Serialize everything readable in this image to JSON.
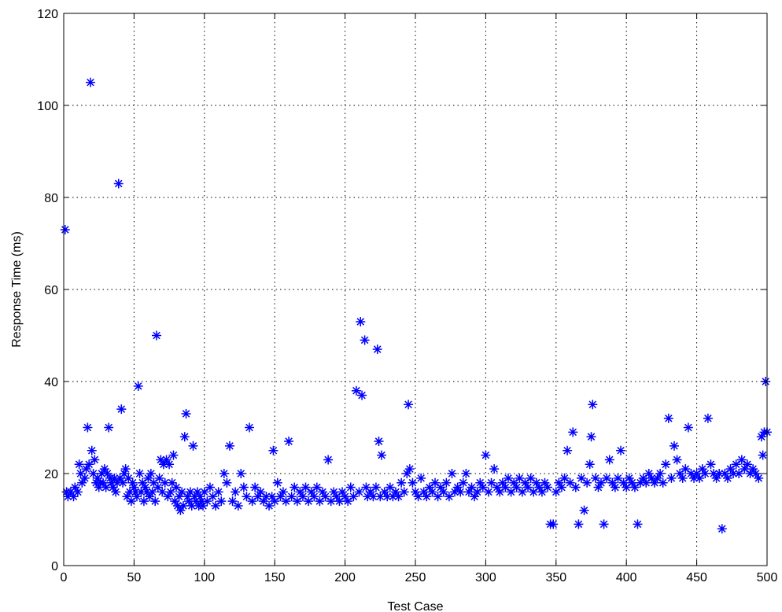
{
  "chart_data": {
    "type": "scatter",
    "title": "",
    "xlabel": "Test Case",
    "ylabel": "Response Time (ms)",
    "xlim": [
      0,
      500
    ],
    "ylim": [
      0,
      120
    ],
    "xticks": [
      0,
      50,
      100,
      150,
      200,
      250,
      300,
      350,
      400,
      450,
      500
    ],
    "yticks": [
      0,
      20,
      40,
      60,
      80,
      100,
      120
    ],
    "grid": true,
    "legend": "none",
    "marker": "asterisk",
    "color": "#0000ff",
    "series": [
      {
        "points": [
          [
            1,
            73
          ],
          [
            2,
            16
          ],
          [
            3,
            15
          ],
          [
            5,
            16
          ],
          [
            7,
            15
          ],
          [
            8,
            17
          ],
          [
            10,
            16
          ],
          [
            11,
            22
          ],
          [
            12,
            20
          ],
          [
            13,
            18
          ],
          [
            15,
            19
          ],
          [
            16,
            21
          ],
          [
            17,
            30
          ],
          [
            18,
            22
          ],
          [
            19,
            105
          ],
          [
            20,
            25
          ],
          [
            21,
            20
          ],
          [
            22,
            23
          ],
          [
            23,
            18
          ],
          [
            24,
            19
          ],
          [
            25,
            17
          ],
          [
            26,
            18
          ],
          [
            27,
            20
          ],
          [
            28,
            18
          ],
          [
            29,
            21
          ],
          [
            30,
            17
          ],
          [
            31,
            20
          ],
          [
            32,
            30
          ],
          [
            33,
            19
          ],
          [
            34,
            18
          ],
          [
            35,
            17
          ],
          [
            36,
            19
          ],
          [
            37,
            16
          ],
          [
            38,
            18
          ],
          [
            39,
            83
          ],
          [
            40,
            19
          ],
          [
            41,
            34
          ],
          [
            42,
            18
          ],
          [
            43,
            20
          ],
          [
            44,
            21
          ],
          [
            45,
            15
          ],
          [
            46,
            19
          ],
          [
            47,
            16
          ],
          [
            48,
            14
          ],
          [
            49,
            18
          ],
          [
            50,
            17
          ],
          [
            51,
            16
          ],
          [
            52,
            15
          ],
          [
            53,
            39
          ],
          [
            54,
            20
          ],
          [
            55,
            16
          ],
          [
            56,
            18
          ],
          [
            57,
            14
          ],
          [
            58,
            17
          ],
          [
            59,
            16
          ],
          [
            60,
            19
          ],
          [
            61,
            15
          ],
          [
            62,
            20
          ],
          [
            63,
            16
          ],
          [
            64,
            18
          ],
          [
            65,
            14
          ],
          [
            66,
            50
          ],
          [
            67,
            17
          ],
          [
            68,
            19
          ],
          [
            69,
            23
          ],
          [
            70,
            16
          ],
          [
            71,
            22
          ],
          [
            72,
            18
          ],
          [
            73,
            23
          ],
          [
            74,
            15
          ],
          [
            75,
            22
          ],
          [
            76,
            16
          ],
          [
            77,
            18
          ],
          [
            78,
            24
          ],
          [
            79,
            14
          ],
          [
            80,
            17
          ],
          [
            81,
            13
          ],
          [
            82,
            15
          ],
          [
            83,
            12
          ],
          [
            84,
            16
          ],
          [
            85,
            13
          ],
          [
            86,
            28
          ],
          [
            87,
            33
          ],
          [
            88,
            15
          ],
          [
            89,
            14
          ],
          [
            90,
            16
          ],
          [
            91,
            13
          ],
          [
            92,
            26
          ],
          [
            93,
            15
          ],
          [
            94,
            14
          ],
          [
            95,
            16
          ],
          [
            96,
            13
          ],
          [
            97,
            15
          ],
          [
            98,
            14
          ],
          [
            99,
            13
          ],
          [
            100,
            16
          ],
          [
            102,
            14
          ],
          [
            104,
            17
          ],
          [
            106,
            15
          ],
          [
            108,
            13
          ],
          [
            110,
            16
          ],
          [
            112,
            14
          ],
          [
            114,
            20
          ],
          [
            116,
            18
          ],
          [
            118,
            26
          ],
          [
            120,
            14
          ],
          [
            122,
            16
          ],
          [
            124,
            13
          ],
          [
            126,
            20
          ],
          [
            128,
            17
          ],
          [
            130,
            15
          ],
          [
            132,
            30
          ],
          [
            134,
            14
          ],
          [
            136,
            17
          ],
          [
            138,
            15
          ],
          [
            140,
            16
          ],
          [
            142,
            14
          ],
          [
            144,
            15
          ],
          [
            146,
            13
          ],
          [
            148,
            15
          ],
          [
            149,
            25
          ],
          [
            150,
            14
          ],
          [
            152,
            18
          ],
          [
            154,
            15
          ],
          [
            156,
            16
          ],
          [
            158,
            14
          ],
          [
            160,
            27
          ],
          [
            162,
            15
          ],
          [
            164,
            17
          ],
          [
            166,
            14
          ],
          [
            168,
            16
          ],
          [
            170,
            15
          ],
          [
            172,
            17
          ],
          [
            174,
            14
          ],
          [
            176,
            16
          ],
          [
            178,
            15
          ],
          [
            180,
            17
          ],
          [
            182,
            14
          ],
          [
            184,
            16
          ],
          [
            186,
            15
          ],
          [
            188,
            23
          ],
          [
            190,
            14
          ],
          [
            192,
            16
          ],
          [
            194,
            15
          ],
          [
            196,
            14
          ],
          [
            198,
            16
          ],
          [
            200,
            15
          ],
          [
            202,
            14
          ],
          [
            204,
            17
          ],
          [
            206,
            15
          ],
          [
            208,
            38
          ],
          [
            210,
            16
          ],
          [
            211,
            53
          ],
          [
            212,
            37
          ],
          [
            214,
            49
          ],
          [
            215,
            17
          ],
          [
            216,
            15
          ],
          [
            218,
            16
          ],
          [
            220,
            15
          ],
          [
            222,
            17
          ],
          [
            223,
            47
          ],
          [
            224,
            27
          ],
          [
            225,
            15
          ],
          [
            226,
            24
          ],
          [
            228,
            16
          ],
          [
            230,
            15
          ],
          [
            232,
            17
          ],
          [
            234,
            15
          ],
          [
            236,
            16
          ],
          [
            238,
            15
          ],
          [
            240,
            18
          ],
          [
            242,
            16
          ],
          [
            244,
            20
          ],
          [
            245,
            35
          ],
          [
            246,
            21
          ],
          [
            248,
            18
          ],
          [
            250,
            16
          ],
          [
            252,
            15
          ],
          [
            254,
            19
          ],
          [
            256,
            16
          ],
          [
            258,
            15
          ],
          [
            260,
            17
          ],
          [
            262,
            16
          ],
          [
            264,
            18
          ],
          [
            266,
            15
          ],
          [
            268,
            17
          ],
          [
            270,
            16
          ],
          [
            272,
            18
          ],
          [
            274,
            15
          ],
          [
            276,
            20
          ],
          [
            278,
            16
          ],
          [
            280,
            17
          ],
          [
            282,
            16
          ],
          [
            284,
            18
          ],
          [
            286,
            20
          ],
          [
            288,
            16
          ],
          [
            290,
            17
          ],
          [
            292,
            15
          ],
          [
            294,
            16
          ],
          [
            296,
            18
          ],
          [
            298,
            17
          ],
          [
            300,
            24
          ],
          [
            302,
            16
          ],
          [
            304,
            18
          ],
          [
            306,
            21
          ],
          [
            308,
            17
          ],
          [
            310,
            16
          ],
          [
            312,
            18
          ],
          [
            314,
            17
          ],
          [
            316,
            19
          ],
          [
            318,
            16
          ],
          [
            320,
            18
          ],
          [
            322,
            17
          ],
          [
            324,
            19
          ],
          [
            326,
            16
          ],
          [
            328,
            18
          ],
          [
            330,
            17
          ],
          [
            332,
            19
          ],
          [
            334,
            16
          ],
          [
            336,
            18
          ],
          [
            338,
            17
          ],
          [
            340,
            16
          ],
          [
            342,
            18
          ],
          [
            344,
            17
          ],
          [
            346,
            9
          ],
          [
            348,
            9
          ],
          [
            350,
            16
          ],
          [
            352,
            18
          ],
          [
            354,
            17
          ],
          [
            356,
            19
          ],
          [
            358,
            25
          ],
          [
            360,
            18
          ],
          [
            362,
            29
          ],
          [
            364,
            17
          ],
          [
            366,
            9
          ],
          [
            368,
            19
          ],
          [
            370,
            12
          ],
          [
            372,
            18
          ],
          [
            374,
            22
          ],
          [
            375,
            28
          ],
          [
            376,
            35
          ],
          [
            378,
            19
          ],
          [
            380,
            17
          ],
          [
            382,
            18
          ],
          [
            384,
            9
          ],
          [
            386,
            19
          ],
          [
            388,
            23
          ],
          [
            390,
            18
          ],
          [
            392,
            17
          ],
          [
            394,
            19
          ],
          [
            396,
            25
          ],
          [
            398,
            18
          ],
          [
            400,
            17
          ],
          [
            402,
            19
          ],
          [
            404,
            18
          ],
          [
            406,
            17
          ],
          [
            408,
            9
          ],
          [
            410,
            18
          ],
          [
            412,
            19
          ],
          [
            414,
            18
          ],
          [
            416,
            20
          ],
          [
            418,
            19
          ],
          [
            420,
            18
          ],
          [
            422,
            19
          ],
          [
            424,
            20
          ],
          [
            426,
            18
          ],
          [
            428,
            22
          ],
          [
            430,
            32
          ],
          [
            432,
            19
          ],
          [
            434,
            26
          ],
          [
            436,
            23
          ],
          [
            438,
            20
          ],
          [
            440,
            19
          ],
          [
            442,
            21
          ],
          [
            444,
            30
          ],
          [
            446,
            20
          ],
          [
            448,
            19
          ],
          [
            450,
            20
          ],
          [
            452,
            19
          ],
          [
            454,
            21
          ],
          [
            456,
            20
          ],
          [
            458,
            32
          ],
          [
            460,
            22
          ],
          [
            462,
            20
          ],
          [
            464,
            19
          ],
          [
            466,
            20
          ],
          [
            468,
            8
          ],
          [
            470,
            20
          ],
          [
            472,
            19
          ],
          [
            474,
            21
          ],
          [
            476,
            20
          ],
          [
            478,
            22
          ],
          [
            480,
            20
          ],
          [
            482,
            23
          ],
          [
            484,
            21
          ],
          [
            486,
            22
          ],
          [
            488,
            20
          ],
          [
            490,
            21
          ],
          [
            492,
            20
          ],
          [
            494,
            19
          ],
          [
            496,
            28
          ],
          [
            497,
            24
          ],
          [
            498,
            29
          ],
          [
            499,
            40
          ],
          [
            500,
            29
          ]
        ]
      }
    ]
  }
}
